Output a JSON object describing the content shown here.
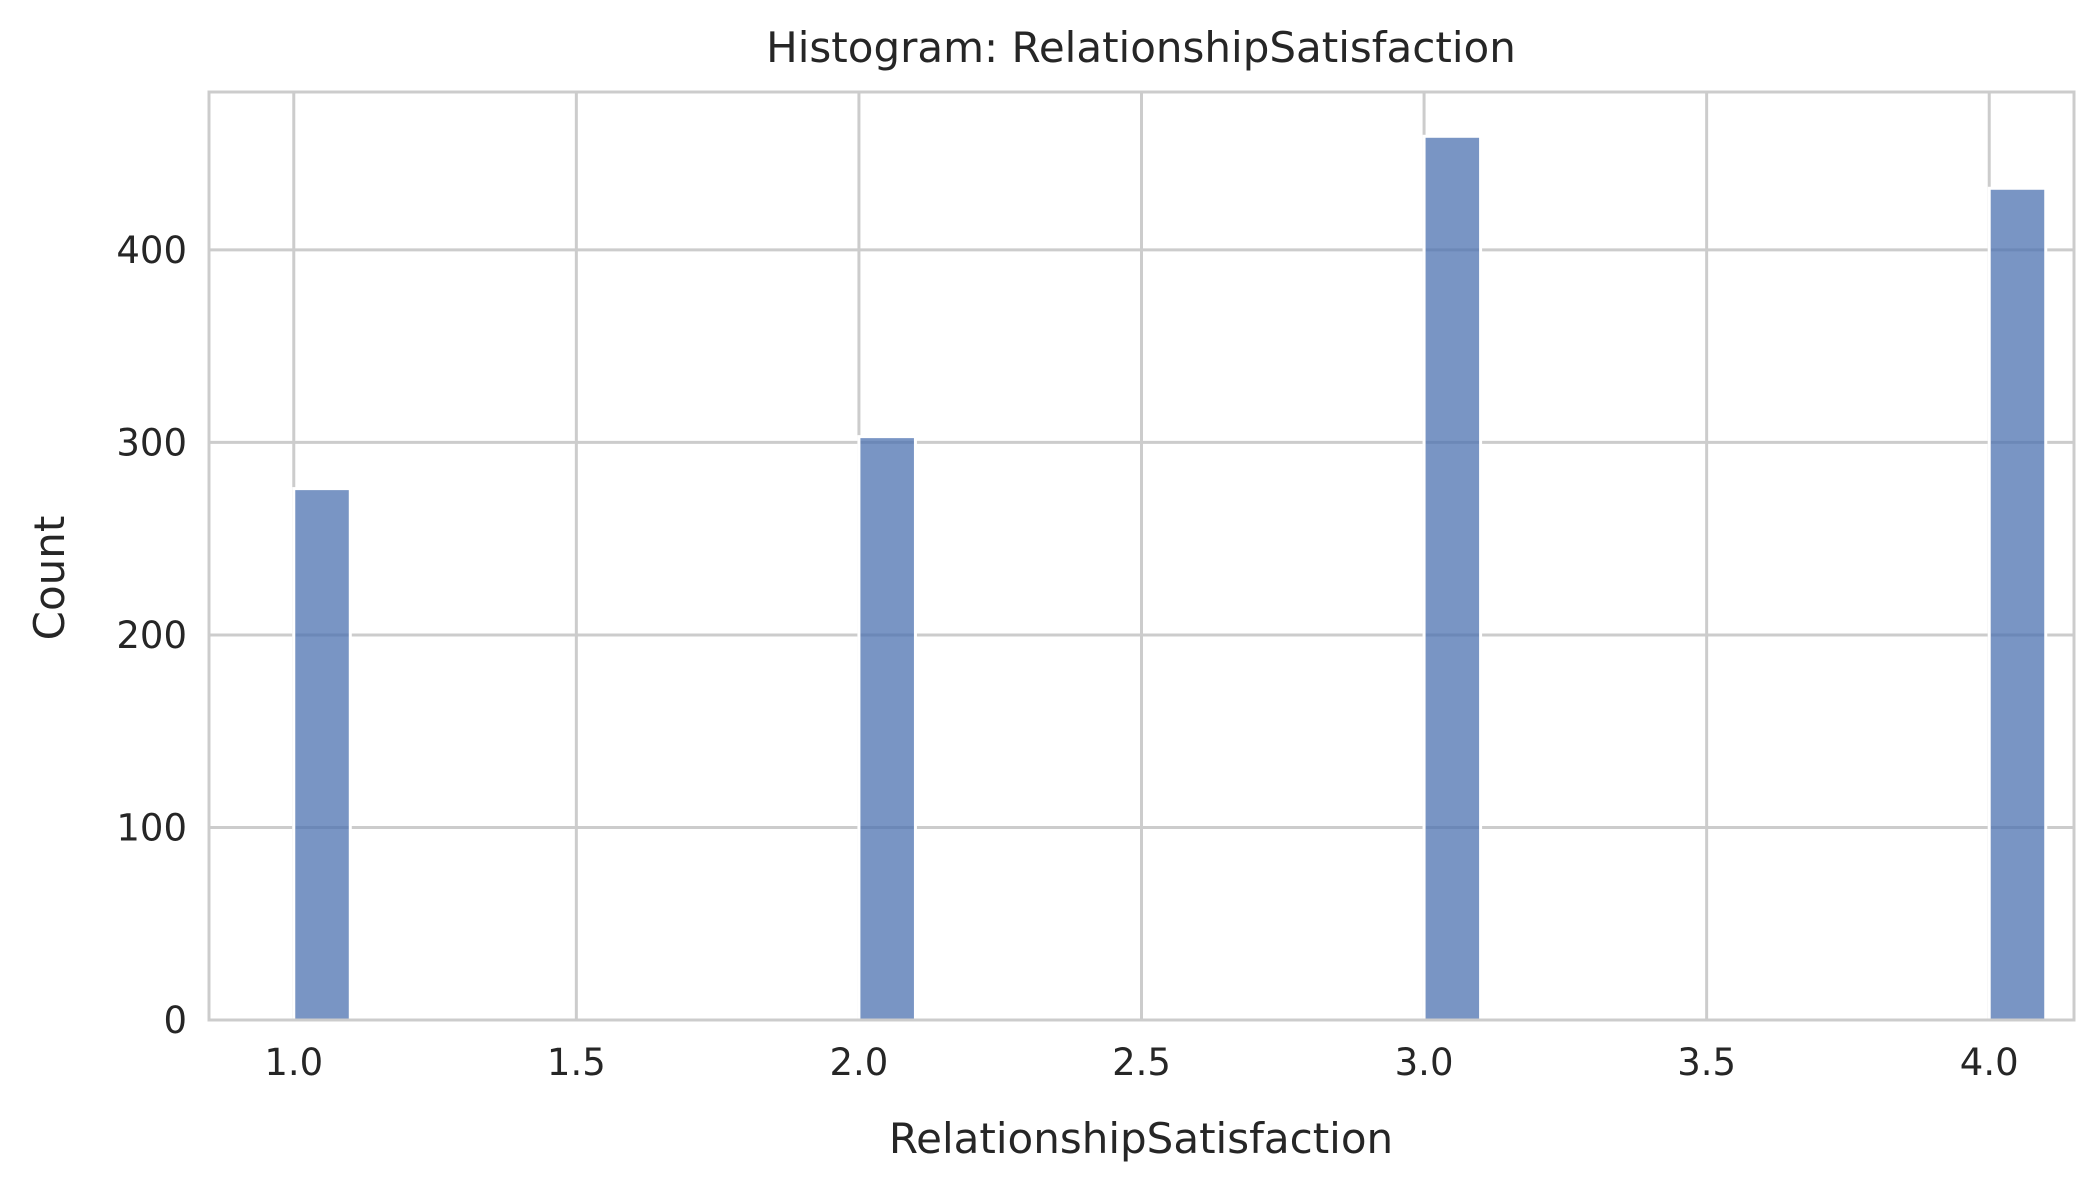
{
  "chart_data": {
    "type": "bar",
    "title": "Histogram: RelationshipSatisfaction",
    "xlabel": "RelationshipSatisfaction",
    "ylabel": "Count",
    "xlim": [
      0.85,
      4.15
    ],
    "ylim": [
      0,
      482
    ],
    "x_ticks": [
      "1.0",
      "1.5",
      "2.0",
      "2.5",
      "3.0",
      "3.5",
      "4.0"
    ],
    "y_ticks": [
      "0",
      "100",
      "200",
      "300",
      "400"
    ],
    "grid": true,
    "bin_width": 0.1,
    "bins": [
      {
        "x0": 1.0,
        "x1": 1.1,
        "count": 276
      },
      {
        "x0": 2.0,
        "x1": 2.1,
        "count": 303
      },
      {
        "x0": 3.0,
        "x1": 3.1,
        "count": 459
      },
      {
        "x0": 4.0,
        "x1": 4.1,
        "count": 432
      }
    ],
    "colors": {
      "bar_fill": "#4c72b0",
      "bar_edge": "#ffffff",
      "grid": "#cccccc",
      "spine": "#cccccc",
      "background": "#ffffff",
      "text": "#262626"
    }
  }
}
